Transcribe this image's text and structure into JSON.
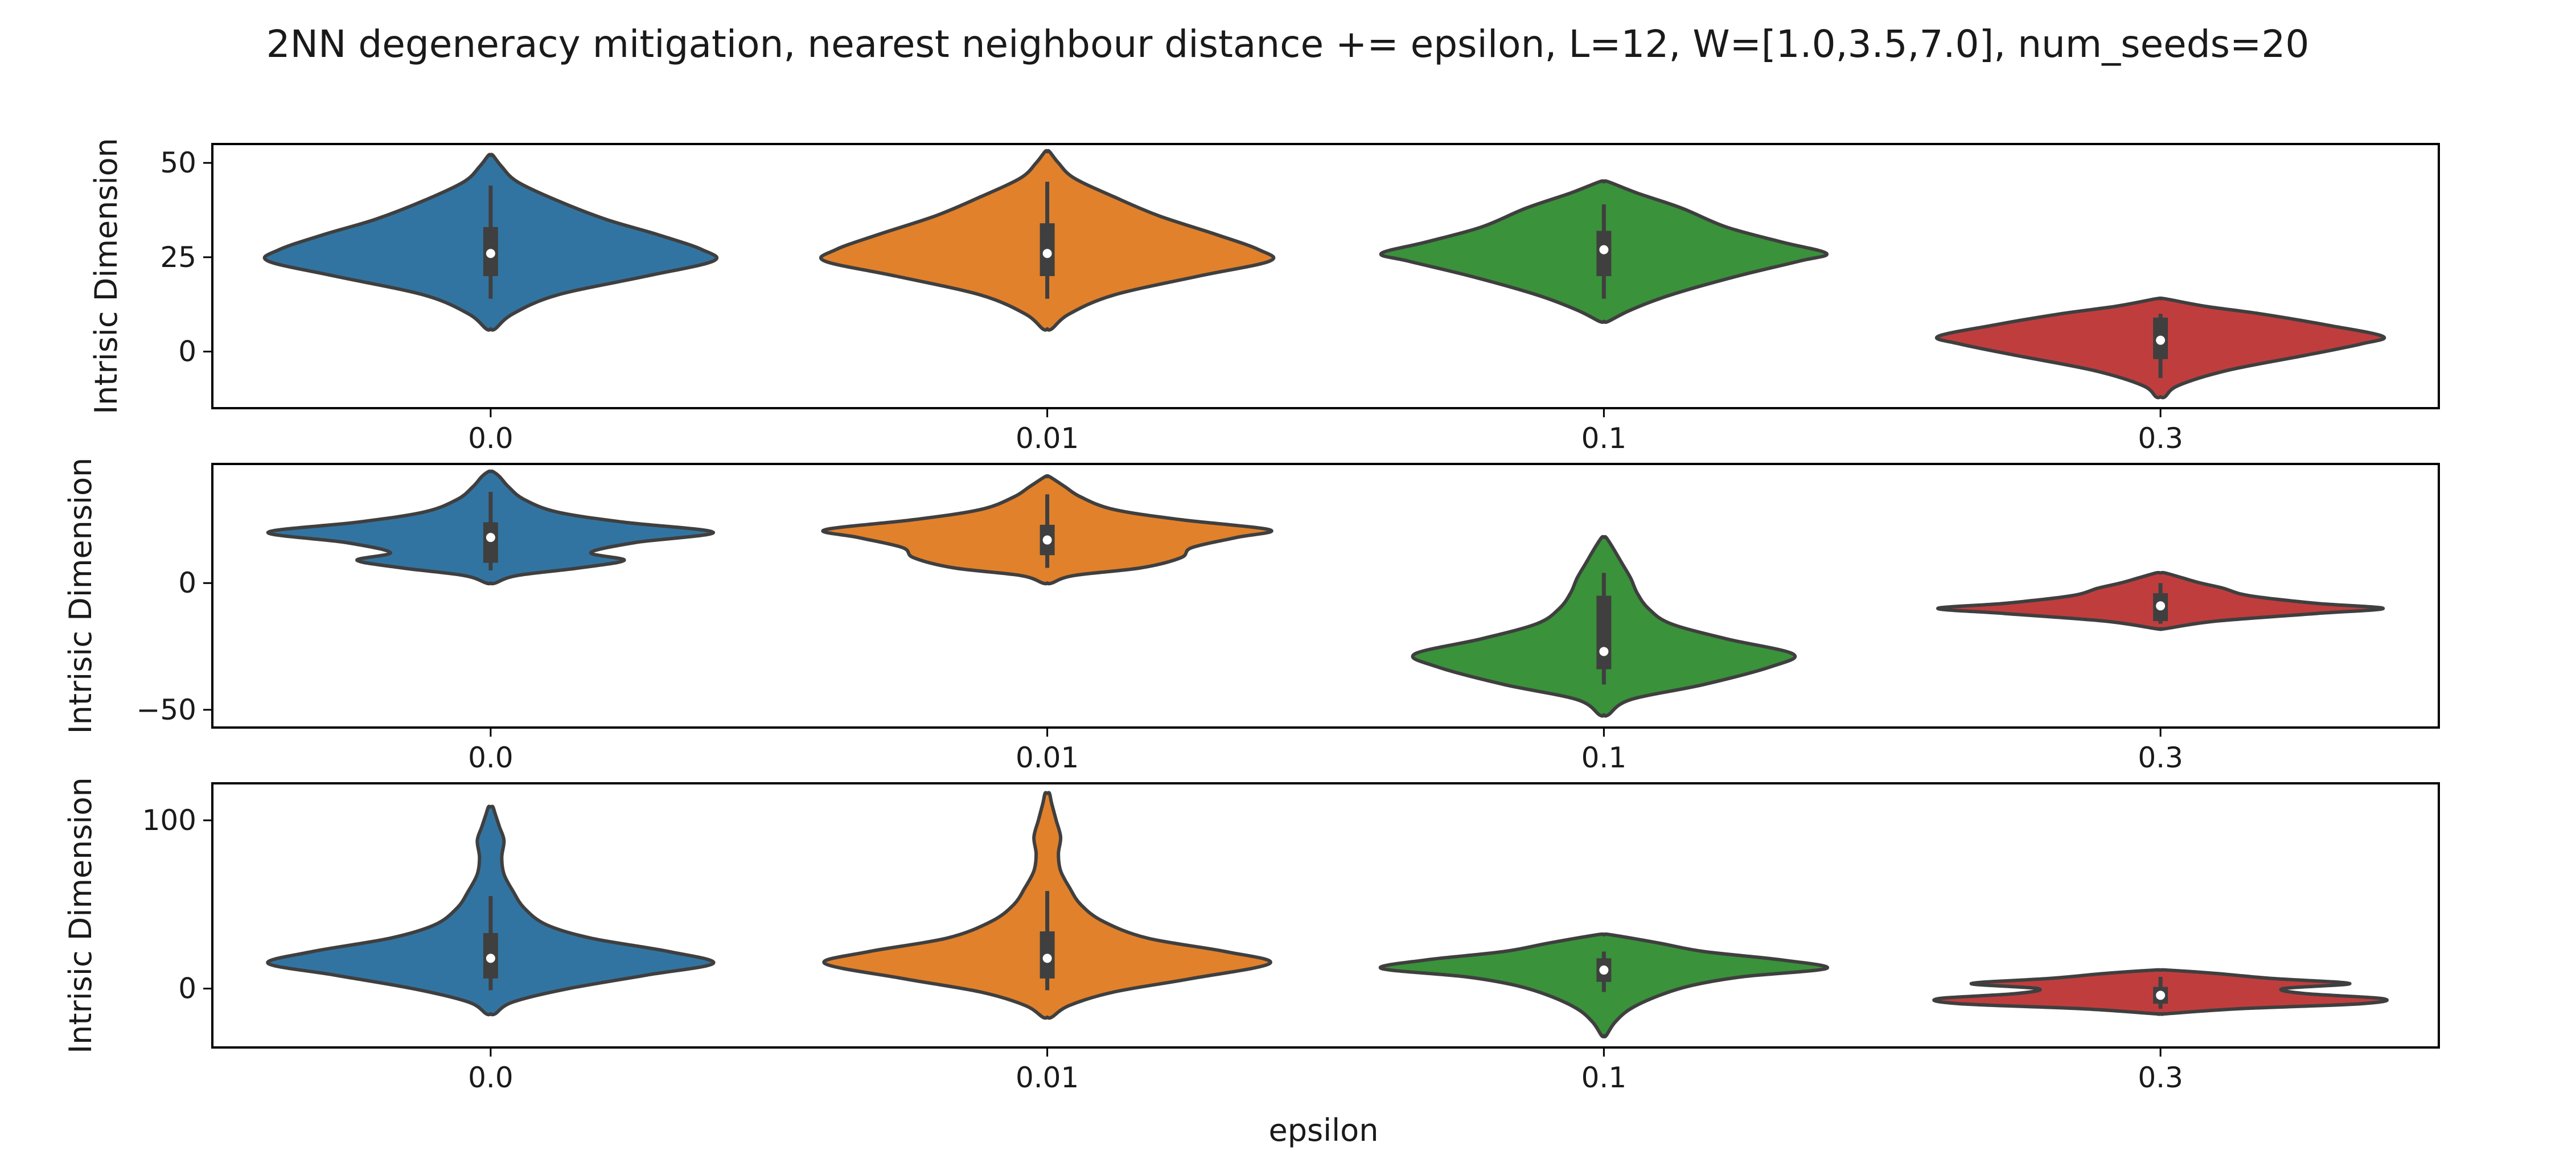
{
  "chart_data": {
    "type": "violin",
    "title": "2NN degeneracy mitigation, nearest neighbour distance += epsilon, L=12, W=[1.0,3.5,7.0], num_seeds=20",
    "xlabel": "epsilon",
    "categories": [
      "0.0",
      "0.01",
      "0.1",
      "0.3"
    ],
    "colors": [
      "#3274a1",
      "#e1812c",
      "#3a923a",
      "#c03d3e"
    ],
    "subplots": [
      {
        "ylabel": "Intrisic Dimension",
        "ylim": [
          -15,
          55
        ],
        "yticks": [
          0,
          25,
          50
        ],
        "ytick_labels": [
          "0",
          "25",
          "50"
        ],
        "xtick_labels": [
          "0.0",
          "0.01",
          "0.1",
          "0.3"
        ],
        "violins": [
          {
            "category": "0.0",
            "y_min": 6,
            "y_max": 52,
            "q1": 20,
            "median": 26,
            "q3": 33,
            "whisker_low": 14,
            "whisker_high": 44,
            "profile": [
              [
                6,
                0.02
              ],
              [
                10,
                0.1
              ],
              [
                15,
                0.3
              ],
              [
                20,
                0.7
              ],
              [
                24,
                1.0
              ],
              [
                27,
                0.95
              ],
              [
                31,
                0.75
              ],
              [
                35,
                0.52
              ],
              [
                40,
                0.3
              ],
              [
                45,
                0.12
              ],
              [
                49,
                0.05
              ],
              [
                52,
                0.01
              ]
            ]
          },
          {
            "category": "0.01",
            "y_min": 6,
            "y_max": 53,
            "q1": 20,
            "median": 26,
            "q3": 34,
            "whisker_low": 14,
            "whisker_high": 45,
            "profile": [
              [
                6,
                0.02
              ],
              [
                10,
                0.1
              ],
              [
                15,
                0.3
              ],
              [
                20,
                0.68
              ],
              [
                24,
                1.0
              ],
              [
                27,
                0.95
              ],
              [
                31,
                0.76
              ],
              [
                36,
                0.5
              ],
              [
                41,
                0.3
              ],
              [
                46,
                0.12
              ],
              [
                50,
                0.05
              ],
              [
                53,
                0.01
              ]
            ]
          },
          {
            "category": "0.1",
            "y_min": 8,
            "y_max": 45,
            "q1": 20,
            "median": 27,
            "q3": 32,
            "whisker_low": 14,
            "whisker_high": 39,
            "profile": [
              [
                8,
                0.02
              ],
              [
                11,
                0.12
              ],
              [
                15,
                0.3
              ],
              [
                20,
                0.6
              ],
              [
                24,
                0.88
              ],
              [
                26,
                1.0
              ],
              [
                29,
                0.8
              ],
              [
                33,
                0.55
              ],
              [
                38,
                0.35
              ],
              [
                42,
                0.15
              ],
              [
                45,
                0.02
              ]
            ]
          },
          {
            "category": "0.3",
            "y_min": -12,
            "y_max": 14,
            "q1": -2,
            "median": 3,
            "q3": 9,
            "whisker_low": -7,
            "whisker_high": 10,
            "profile": [
              [
                -12,
                0.02
              ],
              [
                -9,
                0.08
              ],
              [
                -5,
                0.3
              ],
              [
                -1,
                0.65
              ],
              [
                2,
                0.9
              ],
              [
                4,
                1.0
              ],
              [
                7,
                0.75
              ],
              [
                10,
                0.45
              ],
              [
                12,
                0.2
              ],
              [
                14,
                0.02
              ]
            ]
          }
        ]
      },
      {
        "ylabel": "Intrisic Dimension",
        "ylim": [
          -57,
          47
        ],
        "yticks": [
          -50,
          0
        ],
        "ytick_labels": [
          "−50",
          "0"
        ],
        "xtick_labels": [
          "0.0",
          "0.01",
          "0.1",
          "0.3"
        ],
        "violins": [
          {
            "category": "0.0",
            "y_min": 0,
            "y_max": 44,
            "q1": 8,
            "median": 18,
            "q3": 24,
            "whisker_low": 5,
            "whisker_high": 36,
            "profile": [
              [
                0,
                0.02
              ],
              [
                3,
                0.12
              ],
              [
                6,
                0.4
              ],
              [
                9,
                0.6
              ],
              [
                12,
                0.45
              ],
              [
                16,
                0.65
              ],
              [
                20,
                1.0
              ],
              [
                24,
                0.6
              ],
              [
                28,
                0.3
              ],
              [
                33,
                0.15
              ],
              [
                38,
                0.08
              ],
              [
                42,
                0.04
              ],
              [
                44,
                0.01
              ]
            ]
          },
          {
            "category": "0.01",
            "y_min": 0,
            "y_max": 42,
            "q1": 11,
            "median": 17,
            "q3": 23,
            "whisker_low": 6,
            "whisker_high": 35,
            "profile": [
              [
                0,
                0.02
              ],
              [
                3,
                0.12
              ],
              [
                6,
                0.42
              ],
              [
                10,
                0.6
              ],
              [
                14,
                0.65
              ],
              [
                18,
                0.85
              ],
              [
                21,
                1.0
              ],
              [
                25,
                0.6
              ],
              [
                29,
                0.3
              ],
              [
                34,
                0.15
              ],
              [
                38,
                0.08
              ],
              [
                42,
                0.01
              ]
            ]
          },
          {
            "category": "0.1",
            "y_min": -52,
            "y_max": 18,
            "q1": -34,
            "median": -27,
            "q3": -5,
            "whisker_low": -40,
            "whisker_high": 4,
            "profile": [
              [
                -52,
                0.02
              ],
              [
                -46,
                0.12
              ],
              [
                -40,
                0.45
              ],
              [
                -33,
                0.75
              ],
              [
                -28,
                0.85
              ],
              [
                -22,
                0.55
              ],
              [
                -16,
                0.3
              ],
              [
                -10,
                0.2
              ],
              [
                -4,
                0.15
              ],
              [
                2,
                0.12
              ],
              [
                8,
                0.08
              ],
              [
                14,
                0.04
              ],
              [
                18,
                0.01
              ]
            ]
          },
          {
            "category": "0.3",
            "y_min": -18,
            "y_max": 4,
            "q1": -15,
            "median": -9,
            "q3": -4,
            "whisker_low": -16,
            "whisker_high": 0,
            "profile": [
              [
                -18,
                0.02
              ],
              [
                -15,
                0.25
              ],
              [
                -12,
                0.7
              ],
              [
                -10,
                1.0
              ],
              [
                -8,
                0.7
              ],
              [
                -5,
                0.4
              ],
              [
                -2,
                0.28
              ],
              [
                0,
                0.18
              ],
              [
                2,
                0.1
              ],
              [
                4,
                0.02
              ]
            ]
          }
        ]
      },
      {
        "ylabel": "Intrisic Dimension",
        "ylim": [
          -35,
          122
        ],
        "yticks": [
          0,
          100
        ],
        "ytick_labels": [
          "0",
          "100"
        ],
        "xtick_labels": [
          "0.0",
          "0.01",
          "0.1",
          "0.3"
        ],
        "violins": [
          {
            "category": "0.0",
            "y_min": -15,
            "y_max": 108,
            "q1": 6,
            "median": 18,
            "q3": 33,
            "whisker_low": -1,
            "whisker_high": 55,
            "profile": [
              [
                -15,
                0.02
              ],
              [
                -8,
                0.1
              ],
              [
                0,
                0.35
              ],
              [
                8,
                0.7
              ],
              [
                15,
                1.0
              ],
              [
                22,
                0.8
              ],
              [
                30,
                0.45
              ],
              [
                38,
                0.25
              ],
              [
                48,
                0.15
              ],
              [
                58,
                0.1
              ],
              [
                68,
                0.06
              ],
              [
                78,
                0.05
              ],
              [
                88,
                0.06
              ],
              [
                96,
                0.04
              ],
              [
                104,
                0.02
              ],
              [
                108,
                0.01
              ]
            ]
          },
          {
            "category": "0.01",
            "y_min": -17,
            "y_max": 116,
            "q1": 6,
            "median": 18,
            "q3": 34,
            "whisker_low": -1,
            "whisker_high": 58,
            "profile": [
              [
                -17,
                0.02
              ],
              [
                -10,
                0.1
              ],
              [
                -2,
                0.3
              ],
              [
                6,
                0.65
              ],
              [
                15,
                1.0
              ],
              [
                22,
                0.8
              ],
              [
                30,
                0.45
              ],
              [
                40,
                0.25
              ],
              [
                50,
                0.15
              ],
              [
                60,
                0.1
              ],
              [
                70,
                0.06
              ],
              [
                80,
                0.05
              ],
              [
                90,
                0.06
              ],
              [
                100,
                0.04
              ],
              [
                110,
                0.02
              ],
              [
                116,
                0.01
              ]
            ]
          },
          {
            "category": "0.1",
            "y_min": -28,
            "y_max": 32,
            "q1": 4,
            "median": 11,
            "q3": 18,
            "whisker_low": -2,
            "whisker_high": 22,
            "profile": [
              [
                -28,
                0.01
              ],
              [
                -20,
                0.05
              ],
              [
                -12,
                0.12
              ],
              [
                -4,
                0.25
              ],
              [
                2,
                0.4
              ],
              [
                7,
                0.62
              ],
              [
                12,
                1.0
              ],
              [
                17,
                0.8
              ],
              [
                22,
                0.45
              ],
              [
                27,
                0.25
              ],
              [
                32,
                0.03
              ]
            ]
          },
          {
            "category": "0.3",
            "y_min": -15,
            "y_max": 11,
            "q1": -9,
            "median": -4,
            "q3": 1,
            "whisker_low": -12,
            "whisker_high": 7,
            "profile": [
              [
                -15,
                0.02
              ],
              [
                -12,
                0.35
              ],
              [
                -9,
                0.9
              ],
              [
                -6,
                1.0
              ],
              [
                -3,
                0.65
              ],
              [
                0,
                0.55
              ],
              [
                3,
                0.85
              ],
              [
                6,
                0.5
              ],
              [
                9,
                0.25
              ],
              [
                11,
                0.03
              ]
            ]
          }
        ]
      }
    ]
  }
}
